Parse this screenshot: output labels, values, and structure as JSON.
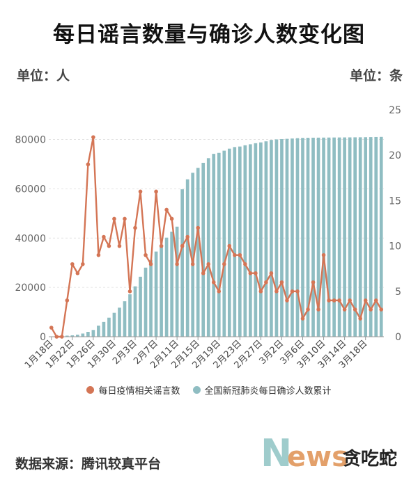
{
  "title": "每日谣言数量与确诊人数变化图",
  "unit_left": "单位：人",
  "unit_right": "单位：条",
  "source": "数据来源：腾讯较真平台",
  "logo": {
    "word": "News",
    "suffix": "贪吃蛇"
  },
  "colors": {
    "line": "#d47555",
    "bar": "#8fbdc2",
    "grid": "#e4e4e4",
    "axis_text": "#666666"
  },
  "chart_data": {
    "type": "bar+line",
    "x_labels": [
      "1月18日",
      "1月22日",
      "1月26日",
      "1月30日",
      "2月3日",
      "2月7日",
      "2月11日",
      "2月15日",
      "2月19日",
      "2月23日",
      "2月27日",
      "3月2日",
      "3月6日",
      "3月10日",
      "3月14日",
      "3月18日"
    ],
    "x_label_every": 4,
    "y_left": {
      "min": 0,
      "max": 92000,
      "ticks": [
        0,
        20000,
        40000,
        60000,
        80000
      ]
    },
    "y_right": {
      "min": 0,
      "max": 25,
      "ticks": [
        0,
        5,
        10,
        15,
        20,
        25
      ]
    },
    "legend": [
      {
        "name": "每日疫情相关谣言数",
        "color": "#d47555"
      },
      {
        "name": "全国新冠肺炎每日确诊人数累计",
        "color": "#8fbdc2"
      }
    ],
    "series": [
      {
        "name": "全国新冠肺炎每日确诊人数累计",
        "type": "bar",
        "axis": "left",
        "values": [
          62,
          198,
          291,
          440,
          571,
          830,
          1287,
          1975,
          2744,
          4515,
          5974,
          7711,
          9692,
          11791,
          14380,
          17205,
          20438,
          24324,
          28018,
          31161,
          34546,
          37198,
          40171,
          42638,
          44653,
          59804,
          63851,
          66492,
          68500,
          70548,
          72436,
          74185,
          74576,
          75465,
          76288,
          76936,
          77150,
          77658,
          78064,
          78497,
          78824,
          79251,
          79824,
          80026,
          80151,
          80270,
          80409,
          80552,
          80651,
          80695,
          80735,
          80754,
          80778,
          80793,
          80813,
          80824,
          80844,
          80860,
          80881,
          80894,
          80928,
          80967,
          81008,
          81054
        ]
      },
      {
        "name": "每日疫情相关谣言数",
        "type": "line",
        "axis": "right",
        "values": [
          1,
          0,
          0,
          4,
          8,
          7,
          8,
          19,
          22,
          9,
          11,
          10,
          13,
          10,
          13,
          5,
          12,
          16,
          9,
          8,
          16,
          10,
          14,
          13,
          8,
          10,
          11,
          8,
          12,
          7,
          8,
          6,
          5,
          8,
          10,
          9,
          9,
          8,
          7,
          7,
          5,
          6,
          7,
          5,
          6,
          4,
          5,
          5,
          2,
          3,
          6,
          3,
          9,
          4,
          4,
          4,
          3,
          4,
          3,
          2,
          4,
          3,
          4,
          3
        ]
      }
    ]
  }
}
